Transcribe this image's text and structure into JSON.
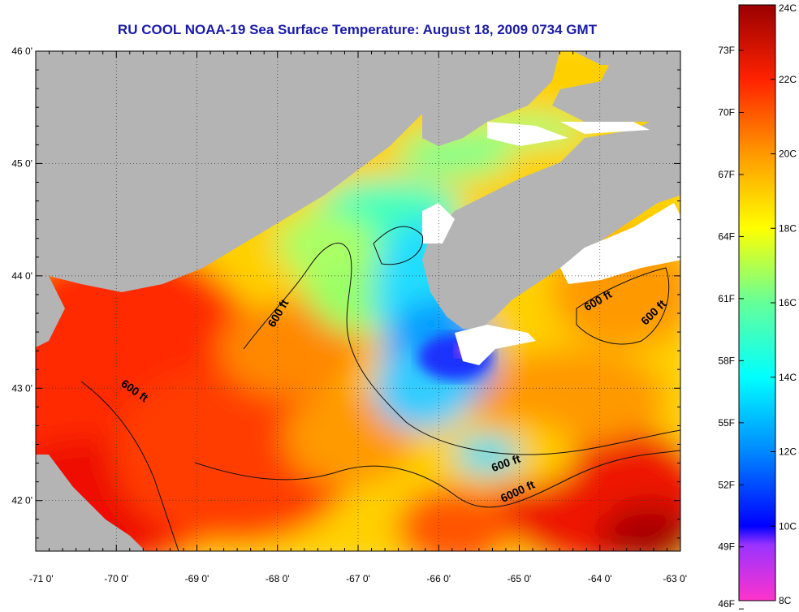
{
  "title": "RU COOL  NOAA-19  Sea Surface Temperature:  August 18, 2009 0734 GMT",
  "colors": {
    "land": "#b4b4b4",
    "cloud": "#ffffff",
    "title": "#1a1aa8",
    "contour": "#111111"
  },
  "map": {
    "lon_range": [
      -71,
      -63
    ],
    "lat_range": [
      41.55,
      46
    ],
    "lon_ticks": [
      {
        "value": -71,
        "label": "-71 0'"
      },
      {
        "value": -70,
        "label": "-70 0'"
      },
      {
        "value": -69,
        "label": "-69 0'"
      },
      {
        "value": -68,
        "label": "-68 0'"
      },
      {
        "value": -67,
        "label": "-67 0'"
      },
      {
        "value": -66,
        "label": "-66 0'"
      },
      {
        "value": -65,
        "label": "-65 0'"
      },
      {
        "value": -64,
        "label": "-64 0'"
      },
      {
        "value": -63,
        "label": "-63 0'"
      }
    ],
    "lat_ticks": [
      {
        "value": 46,
        "label": "46 0'"
      },
      {
        "value": 45,
        "label": "45 0'"
      },
      {
        "value": 44,
        "label": "44 0'"
      },
      {
        "value": 43,
        "label": "43 0'"
      },
      {
        "value": 42,
        "label": "42 0'"
      }
    ],
    "contour_labels": [
      {
        "text": "600 ft",
        "lon": -67.95,
        "lat": 43.65,
        "angle": -60
      },
      {
        "text": "600 ft",
        "lon": -69.8,
        "lat": 42.95,
        "angle": 35
      },
      {
        "text": "600 ft",
        "lon": -64.0,
        "lat": 43.75,
        "angle": -30
      },
      {
        "text": "600 ft",
        "lon": -63.3,
        "lat": 43.65,
        "angle": -45
      },
      {
        "text": "600 ft",
        "lon": -65.15,
        "lat": 42.3,
        "angle": -20
      },
      {
        "text": "6000 ft",
        "lon": -65.0,
        "lat": 42.05,
        "angle": -25
      }
    ]
  },
  "colorbar": {
    "min_c": 8,
    "max_c": 24,
    "celsius_ticks": [
      {
        "value": 24,
        "label": "24C"
      },
      {
        "value": 22,
        "label": "22C"
      },
      {
        "value": 20,
        "label": "20C"
      },
      {
        "value": 18,
        "label": "18C"
      },
      {
        "value": 16,
        "label": "16C"
      },
      {
        "value": 14,
        "label": "14C"
      },
      {
        "value": 12,
        "label": "12C"
      },
      {
        "value": 10,
        "label": "10C"
      },
      {
        "value": 8,
        "label": "8C"
      }
    ],
    "fahrenheit_ticks": [
      {
        "value": 73,
        "label": "73F"
      },
      {
        "value": 70,
        "label": "70F"
      },
      {
        "value": 67,
        "label": "67F"
      },
      {
        "value": 64,
        "label": "64F"
      },
      {
        "value": 61,
        "label": "61F"
      },
      {
        "value": 58,
        "label": "58F"
      },
      {
        "value": 55,
        "label": "55F"
      },
      {
        "value": 52,
        "label": "52F"
      },
      {
        "value": 49,
        "label": "49F"
      },
      {
        "value": 46,
        "label": "46F"
      }
    ],
    "stops": [
      {
        "c": 8,
        "color": "#ff33cc"
      },
      {
        "c": 9.5,
        "color": "#9933ff"
      },
      {
        "c": 10,
        "color": "#0000ff"
      },
      {
        "c": 12,
        "color": "#0088ff"
      },
      {
        "c": 14,
        "color": "#00ffff"
      },
      {
        "c": 16,
        "color": "#66ff99"
      },
      {
        "c": 18,
        "color": "#ffff00"
      },
      {
        "c": 20,
        "color": "#ff9900"
      },
      {
        "c": 22,
        "color": "#ff2200"
      },
      {
        "c": 24,
        "color": "#990000"
      }
    ]
  }
}
